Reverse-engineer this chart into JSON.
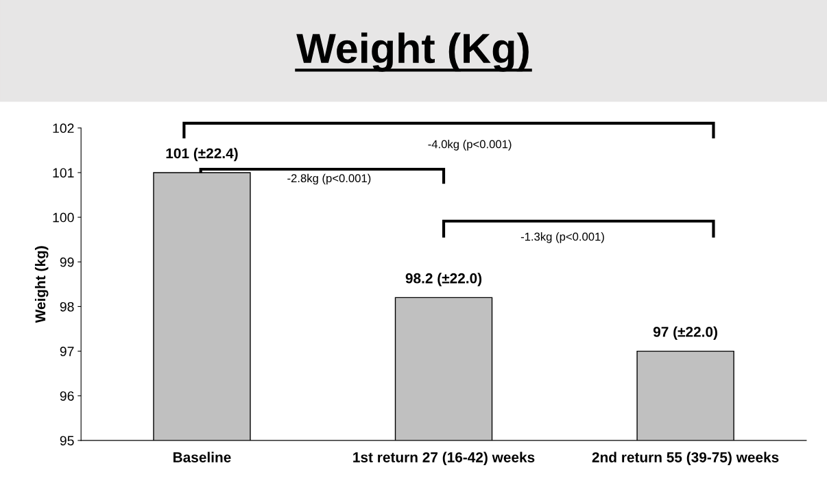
{
  "chart_data": {
    "type": "bar",
    "title": "Weight (Kg)",
    "ylabel": "Weight (kg)",
    "categories": [
      "Baseline",
      "1st return 27 (16-42) weeks",
      "2nd return 55 (39-75) weeks"
    ],
    "values": [
      101,
      98.2,
      97
    ],
    "color": "#c0c0c0",
    "value_labels": [
      "101 (±22.4)",
      "98.2 (±22.0)",
      "97 (±22.0)"
    ],
    "ylim": [
      95,
      102
    ],
    "yticks": [
      95,
      96,
      97,
      98,
      99,
      100,
      101,
      102
    ],
    "grid": false,
    "legend": false,
    "annotations": [
      "-4.0kg (p<0.001)",
      "-2.8kg (p<0.001)",
      "-1.3kg (p<0.001)"
    ]
  }
}
